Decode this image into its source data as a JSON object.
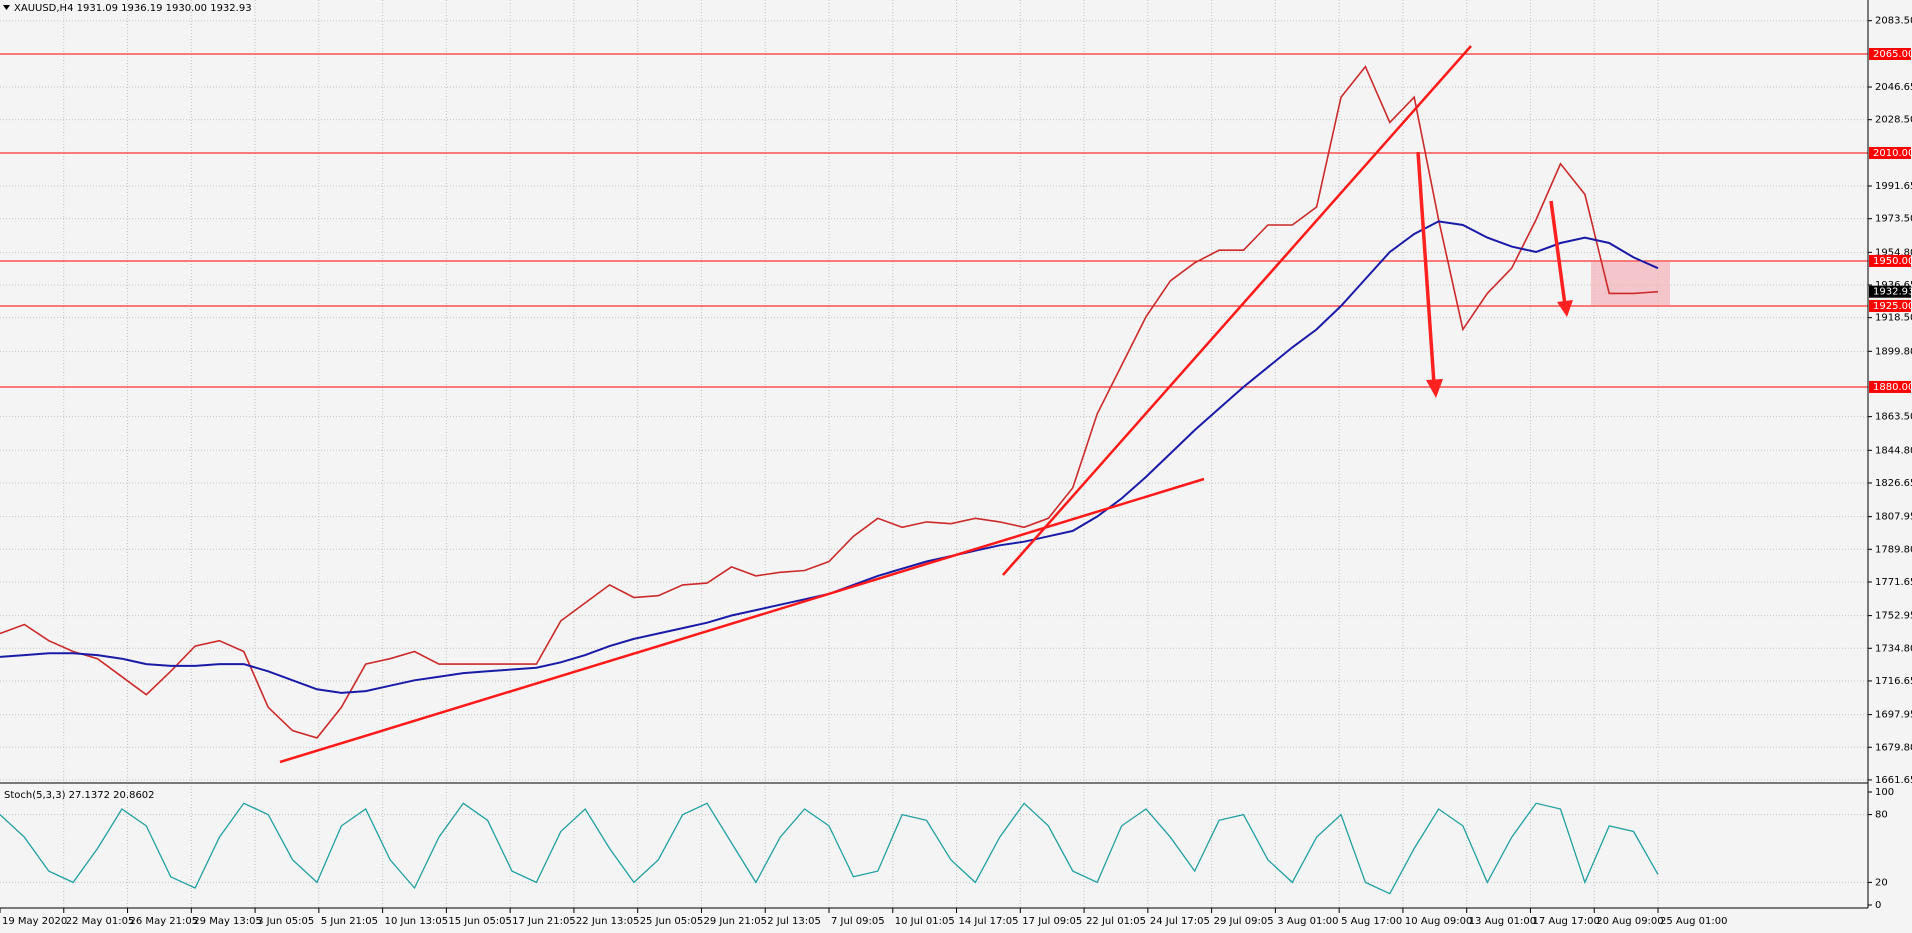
{
  "chart_data": {
    "type": "line",
    "title": "XAUUSD,H4  1931.09 1936.19 1930.00 1932.93",
    "ylim": [
      1660.5,
      2095
    ],
    "yticks": [
      {
        "value": 2083.5,
        "label": "2083.50"
      },
      {
        "value": 2046.65,
        "label": "2046.65"
      },
      {
        "value": 2028.5,
        "label": "2028.50"
      },
      {
        "value": 1991.65,
        "label": "1991.65"
      },
      {
        "value": 1973.5,
        "label": "1973.50"
      },
      {
        "value": 1954.8,
        "label": "1954.80"
      },
      {
        "value": 1936.65,
        "label": "1936.65"
      },
      {
        "value": 1918.5,
        "label": "1918.50"
      },
      {
        "value": 1899.8,
        "label": "1899.80"
      },
      {
        "value": 1863.5,
        "label": "1863.50"
      },
      {
        "value": 1844.8,
        "label": "1844.80"
      },
      {
        "value": 1826.65,
        "label": "1826.65"
      },
      {
        "value": 1807.95,
        "label": "1807.95"
      },
      {
        "value": 1789.8,
        "label": "1789.80"
      },
      {
        "value": 1771.65,
        "label": "1771.65"
      },
      {
        "value": 1752.95,
        "label": "1752.95"
      },
      {
        "value": 1734.8,
        "label": "1734.80"
      },
      {
        "value": 1716.65,
        "label": "1716.65"
      },
      {
        "value": 1697.95,
        "label": "1697.95"
      },
      {
        "value": 1679.8,
        "label": "1679.80"
      },
      {
        "value": 1661.65,
        "label": "1661.65"
      }
    ],
    "levels": [
      {
        "value": 2065,
        "label": "2065.00"
      },
      {
        "value": 2010,
        "label": "2010.00"
      },
      {
        "value": 1950,
        "label": "1950.00"
      },
      {
        "value": 1925,
        "label": "1925.00"
      },
      {
        "value": 1880,
        "label": "1880.00"
      }
    ],
    "level_color": "#ff0000",
    "current_price": 1932.93,
    "grid": true,
    "x_labels": [
      "19 May 2020",
      "22 May 01:05",
      "26 May 21:05",
      "29 May 13:05",
      "3 Jun 05:05",
      "5 Jun 21:05",
      "10 Jun 13:05",
      "15 Jun 05:05",
      "17 Jun 21:05",
      "22 Jun 13:05",
      "25 Jun 05:05",
      "29 Jun 21:05",
      "2 Jul 13:05",
      "7 Jul 09:05",
      "10 Jul 01:05",
      "14 Jul 17:05",
      "17 Jul 09:05",
      "22 Jul 01:05",
      "24 Jul 17:05",
      "29 Jul 09:05",
      "3 Aug 01:00",
      "5 Aug 17:00",
      "10 Aug 09:00",
      "13 Aug 01:00",
      "17 Aug 17:00",
      "20 Aug 09:00",
      "25 Aug 01:00"
    ],
    "series": [
      {
        "name": "Close",
        "color": "#cc2a2a",
        "values": [
          1743,
          1748,
          1739,
          1733,
          1729,
          1719,
          1709,
          1722,
          1736,
          1739,
          1733,
          1702,
          1689,
          1685,
          1702,
          1726,
          1729,
          1733,
          1726,
          1726,
          1726,
          1726,
          1726,
          1750,
          1760,
          1770,
          1763,
          1764,
          1770,
          1771,
          1780,
          1775,
          1777,
          1778,
          1783,
          1797,
          1807,
          1802,
          1805,
          1804,
          1807,
          1805,
          1802,
          1807,
          1824,
          1865,
          1892,
          1919,
          1939,
          1949,
          1956,
          1956,
          1970,
          1970,
          1980,
          2041,
          2058,
          2027,
          2041,
          1973,
          1912,
          1932,
          1946,
          1973,
          2004,
          1987,
          1932,
          1932,
          1932.93
        ]
      },
      {
        "name": "MA",
        "color": "#1a1aa8",
        "values": [
          1730,
          1731,
          1732,
          1732,
          1731,
          1729,
          1726,
          1725,
          1725,
          1726,
          1726,
          1722,
          1717,
          1712,
          1710,
          1711,
          1714,
          1717,
          1719,
          1721,
          1722,
          1723,
          1724,
          1727,
          1731,
          1736,
          1740,
          1743,
          1746,
          1749,
          1753,
          1756,
          1759,
          1762,
          1765,
          1770,
          1775,
          1779,
          1783,
          1786,
          1789,
          1792,
          1794,
          1797,
          1800,
          1808,
          1818,
          1830,
          1843,
          1856,
          1868,
          1880,
          1891,
          1902,
          1912,
          1925,
          1940,
          1955,
          1965,
          1972,
          1970,
          1963,
          1958,
          1955,
          1960,
          1963,
          1960,
          1952,
          1946
        ]
      }
    ],
    "stoch": {
      "label": "Stoch(5,3,3) 27.1372 20.8602",
      "ylim": [
        0,
        100
      ],
      "yticks": [
        100,
        80,
        20,
        0
      ],
      "color": "#20a0a0",
      "values": [
        80,
        60,
        30,
        20,
        50,
        85,
        70,
        25,
        15,
        60,
        90,
        80,
        40,
        20,
        70,
        85,
        40,
        15,
        60,
        90,
        75,
        30,
        20,
        65,
        85,
        50,
        20,
        40,
        80,
        90,
        55,
        20,
        60,
        85,
        70,
        25,
        30,
        80,
        75,
        40,
        20,
        60,
        90,
        70,
        30,
        20,
        70,
        85,
        60,
        30,
        75,
        80,
        40,
        20,
        60,
        80,
        20,
        10,
        50,
        85,
        70,
        20,
        60,
        90,
        85,
        20,
        70,
        65,
        27
      ]
    }
  }
}
